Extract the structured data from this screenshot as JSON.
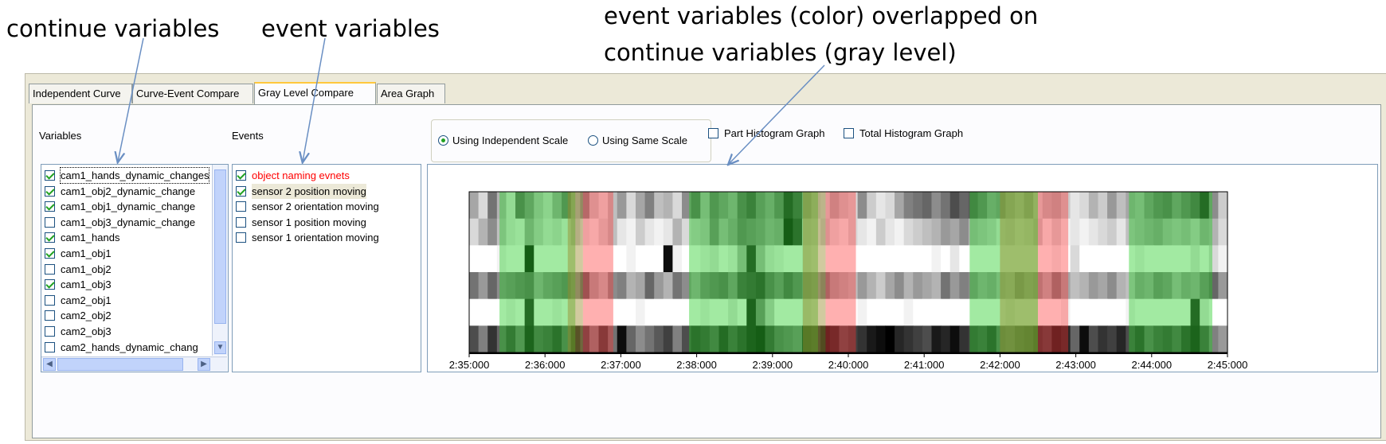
{
  "annotations": {
    "continue": "continue variables",
    "event": "event variables",
    "overlap_line1": "event variables  (color) overlapped on",
    "overlap_line2": "continue variables (gray level)"
  },
  "tabs": [
    {
      "label": "Independent Curve",
      "active": false
    },
    {
      "label": "Curve-Event Compare",
      "active": false
    },
    {
      "label": "Gray Level Compare",
      "active": true
    },
    {
      "label": "Area Graph",
      "active": false
    }
  ],
  "variables": {
    "label": "Variables",
    "items": [
      {
        "label": "cam1_hands_dynamic_changes",
        "checked": true
      },
      {
        "label": "cam1_obj2_dynamic_change",
        "checked": true
      },
      {
        "label": "cam1_obj1_dynamic_change",
        "checked": true
      },
      {
        "label": "cam1_obj3_dynamic_change",
        "checked": false
      },
      {
        "label": "cam1_hands",
        "checked": true
      },
      {
        "label": "cam1_obj1",
        "checked": true
      },
      {
        "label": "cam1_obj2",
        "checked": false
      },
      {
        "label": "cam1_obj3",
        "checked": true
      },
      {
        "label": "cam2_obj1",
        "checked": false
      },
      {
        "label": "cam2_obj2",
        "checked": false
      },
      {
        "label": "cam2_obj3",
        "checked": false
      },
      {
        "label": "cam2_hands_dynamic_chang",
        "checked": false
      }
    ]
  },
  "events": {
    "label": "Events",
    "items": [
      {
        "label": "object naming evnets",
        "checked": true,
        "color": "#ff0000"
      },
      {
        "label": "sensor 2 position moving",
        "checked": true,
        "color": "#000000"
      },
      {
        "label": "sensor 2 orientation moving",
        "checked": false,
        "color": "#000000"
      },
      {
        "label": "sensor 1 position moving",
        "checked": false,
        "color": "#000000"
      },
      {
        "label": "sensor 1 orientation moving",
        "checked": false,
        "color": "#000000"
      }
    ]
  },
  "options": {
    "scale_independent": "Using Independent Scale",
    "scale_same": "Using Same Scale",
    "scale_selected": "independent",
    "part_histogram": "Part Histogram Graph",
    "total_histogram": "Total Histogram Graph"
  },
  "chart_data": {
    "type": "heatmap",
    "x_ticks": [
      "2:35:000",
      "2:36:000",
      "2:37:000",
      "2:38:000",
      "2:39:000",
      "2:40:000",
      "2:41:000",
      "2:42:000",
      "2:43:000",
      "2:44:000",
      "2:45:000"
    ],
    "green_intervals_min": [
      [
        0.4,
        1.4
      ],
      [
        2.9,
        4.6
      ],
      [
        6.6,
        7.5
      ],
      [
        8.7,
        9.8
      ]
    ],
    "red_intervals_min": [
      [
        1.5,
        1.9
      ],
      [
        4.7,
        5.1
      ],
      [
        7.5,
        7.9
      ]
    ],
    "overlap_intervals_min": [
      [
        1.3,
        1.5
      ],
      [
        4.4,
        4.7
      ],
      [
        7.0,
        7.5
      ]
    ],
    "rows": [
      [
        0.35,
        0.15,
        0.55,
        0.3,
        0.1,
        0.6,
        0.45,
        0.25,
        0.15,
        0.35,
        0.55,
        0.3,
        0.45,
        0.2,
        0.1,
        0.25,
        0.4,
        0.15,
        0.35,
        0.5,
        0.25,
        0.3,
        0.15,
        0.45,
        0.6,
        0.3,
        0.55,
        0.45,
        0.35,
        0.6,
        0.7,
        0.5,
        0.4,
        0.55,
        0.85,
        0.7,
        0.35,
        0.2,
        0.15,
        0.3,
        0.2,
        0.15,
        0.45,
        0.2,
        0.1,
        0.15,
        0.35,
        0.5,
        0.55,
        0.6,
        0.45,
        0.55,
        0.7,
        0.6,
        0.65,
        0.55,
        0.4,
        0.45,
        0.3,
        0.2,
        0.35,
        0.15,
        0.25,
        0.3,
        0.2,
        0.1,
        0.15,
        0.3,
        0.2,
        0.4,
        0.25,
        0.35,
        0.3,
        0.45,
        0.55,
        0.6,
        0.45,
        0.55,
        0.65,
        0.85,
        0.45,
        0.2
      ],
      [
        0.15,
        0.3,
        0.45,
        0.25,
        0.1,
        0.05,
        0.35,
        0.2,
        0.1,
        0.15,
        0.05,
        0.2,
        0.1,
        0.05,
        0.15,
        0.25,
        0.1,
        0.05,
        0.2,
        0.1,
        0.05,
        0.1,
        0.3,
        0.15,
        0.2,
        0.25,
        0.5,
        0.3,
        0.4,
        0.55,
        0.5,
        0.45,
        0.35,
        0.4,
        0.95,
        0.8,
        0.15,
        0.1,
        0.2,
        0.1,
        0.05,
        0.15,
        0.1,
        0.05,
        0.2,
        0.1,
        0.05,
        0.15,
        0.2,
        0.25,
        0.3,
        0.4,
        0.35,
        0.45,
        0.3,
        0.25,
        0.2,
        0.1,
        0.15,
        0.05,
        0.1,
        0.2,
        0.05,
        0.15,
        0.05,
        0.1,
        0.05,
        0.1,
        0.15,
        0.2,
        0.1,
        0.25,
        0.3,
        0.35,
        0.4,
        0.3,
        0.25,
        0.3,
        0.2,
        0.35,
        0.3,
        0.15
      ],
      [
        0.0,
        0.0,
        0.0,
        0.05,
        0.0,
        0.0,
        0.95,
        0.0,
        0.0,
        0.0,
        0.0,
        0.0,
        0.0,
        0.0,
        0.0,
        0.0,
        0.0,
        0.05,
        0.0,
        0.0,
        0.0,
        0.95,
        0.05,
        0.0,
        0.0,
        0.05,
        0.1,
        0.0,
        0.05,
        0.3,
        0.85,
        0.3,
        0.1,
        0.05,
        0.0,
        0.0,
        0.05,
        0.0,
        0.0,
        0.0,
        0.0,
        0.0,
        0.0,
        0.0,
        0.0,
        0.0,
        0.0,
        0.0,
        0.0,
        0.0,
        0.05,
        0.0,
        0.1,
        0.0,
        0.0,
        0.0,
        0.0,
        0.0,
        0.0,
        0.0,
        0.0,
        0.0,
        0.0,
        0.05,
        0.0,
        0.15,
        0.0,
        0.0,
        0.0,
        0.0,
        0.0,
        0.0,
        0.05,
        0.0,
        0.0,
        0.0,
        0.0,
        0.0,
        0.1,
        0.0,
        0.15,
        0.05
      ],
      [
        0.55,
        0.4,
        0.6,
        0.45,
        0.5,
        0.55,
        0.6,
        0.35,
        0.45,
        0.5,
        0.55,
        0.45,
        0.6,
        0.35,
        0.25,
        0.45,
        0.5,
        0.3,
        0.35,
        0.6,
        0.4,
        0.3,
        0.55,
        0.45,
        0.35,
        0.5,
        0.55,
        0.6,
        0.45,
        0.7,
        0.75,
        0.8,
        0.6,
        0.5,
        0.65,
        0.55,
        0.45,
        0.4,
        0.5,
        0.35,
        0.3,
        0.25,
        0.4,
        0.3,
        0.2,
        0.35,
        0.45,
        0.3,
        0.4,
        0.35,
        0.3,
        0.55,
        0.4,
        0.5,
        0.45,
        0.35,
        0.4,
        0.3,
        0.25,
        0.45,
        0.35,
        0.4,
        0.3,
        0.5,
        0.35,
        0.25,
        0.3,
        0.4,
        0.35,
        0.45,
        0.3,
        0.25,
        0.4,
        0.35,
        0.5,
        0.45,
        0.3,
        0.4,
        0.35,
        0.5,
        0.6,
        0.4
      ],
      [
        0.0,
        0.0,
        0.0,
        0.0,
        0.05,
        0.0,
        0.85,
        0.0,
        0.0,
        0.05,
        0.0,
        0.0,
        0.0,
        0.0,
        0.0,
        0.0,
        0.0,
        0.0,
        0.05,
        0.0,
        0.0,
        0.0,
        0.0,
        0.0,
        0.0,
        0.05,
        0.0,
        0.0,
        0.1,
        0.0,
        0.9,
        0.5,
        0.2,
        0.0,
        0.0,
        0.0,
        0.05,
        0.0,
        0.0,
        0.0,
        0.0,
        0.0,
        0.05,
        0.0,
        0.0,
        0.0,
        0.0,
        0.05,
        0.0,
        0.0,
        0.0,
        0.0,
        0.0,
        0.0,
        0.0,
        0.0,
        0.0,
        0.0,
        0.05,
        0.0,
        0.0,
        0.0,
        0.0,
        0.0,
        0.05,
        0.0,
        0.0,
        0.0,
        0.0,
        0.0,
        0.0,
        0.05,
        0.0,
        0.0,
        0.0,
        0.0,
        0.0,
        0.0,
        0.85,
        0.1,
        0.0,
        0.0
      ],
      [
        0.7,
        0.5,
        0.8,
        0.6,
        0.75,
        0.55,
        0.9,
        0.65,
        0.7,
        0.8,
        0.6,
        0.85,
        0.7,
        0.5,
        0.75,
        0.55,
        0.95,
        0.6,
        0.45,
        0.55,
        0.65,
        0.75,
        0.5,
        0.7,
        0.8,
        0.75,
        0.65,
        0.85,
        0.7,
        0.8,
        0.9,
        0.95,
        0.75,
        0.6,
        0.55,
        0.5,
        0.85,
        0.8,
        0.9,
        0.85,
        0.7,
        0.75,
        0.8,
        0.9,
        0.95,
        1.0,
        0.85,
        0.8,
        0.75,
        0.7,
        0.9,
        0.85,
        0.95,
        0.8,
        0.75,
        0.7,
        0.8,
        0.6,
        0.55,
        0.65,
        0.7,
        0.8,
        0.75,
        0.9,
        0.85,
        0.6,
        0.95,
        0.7,
        0.8,
        0.75,
        0.85,
        0.7,
        0.8,
        0.6,
        0.7,
        0.75,
        0.65,
        0.8,
        0.9,
        0.7,
        0.5,
        0.4
      ]
    ]
  }
}
